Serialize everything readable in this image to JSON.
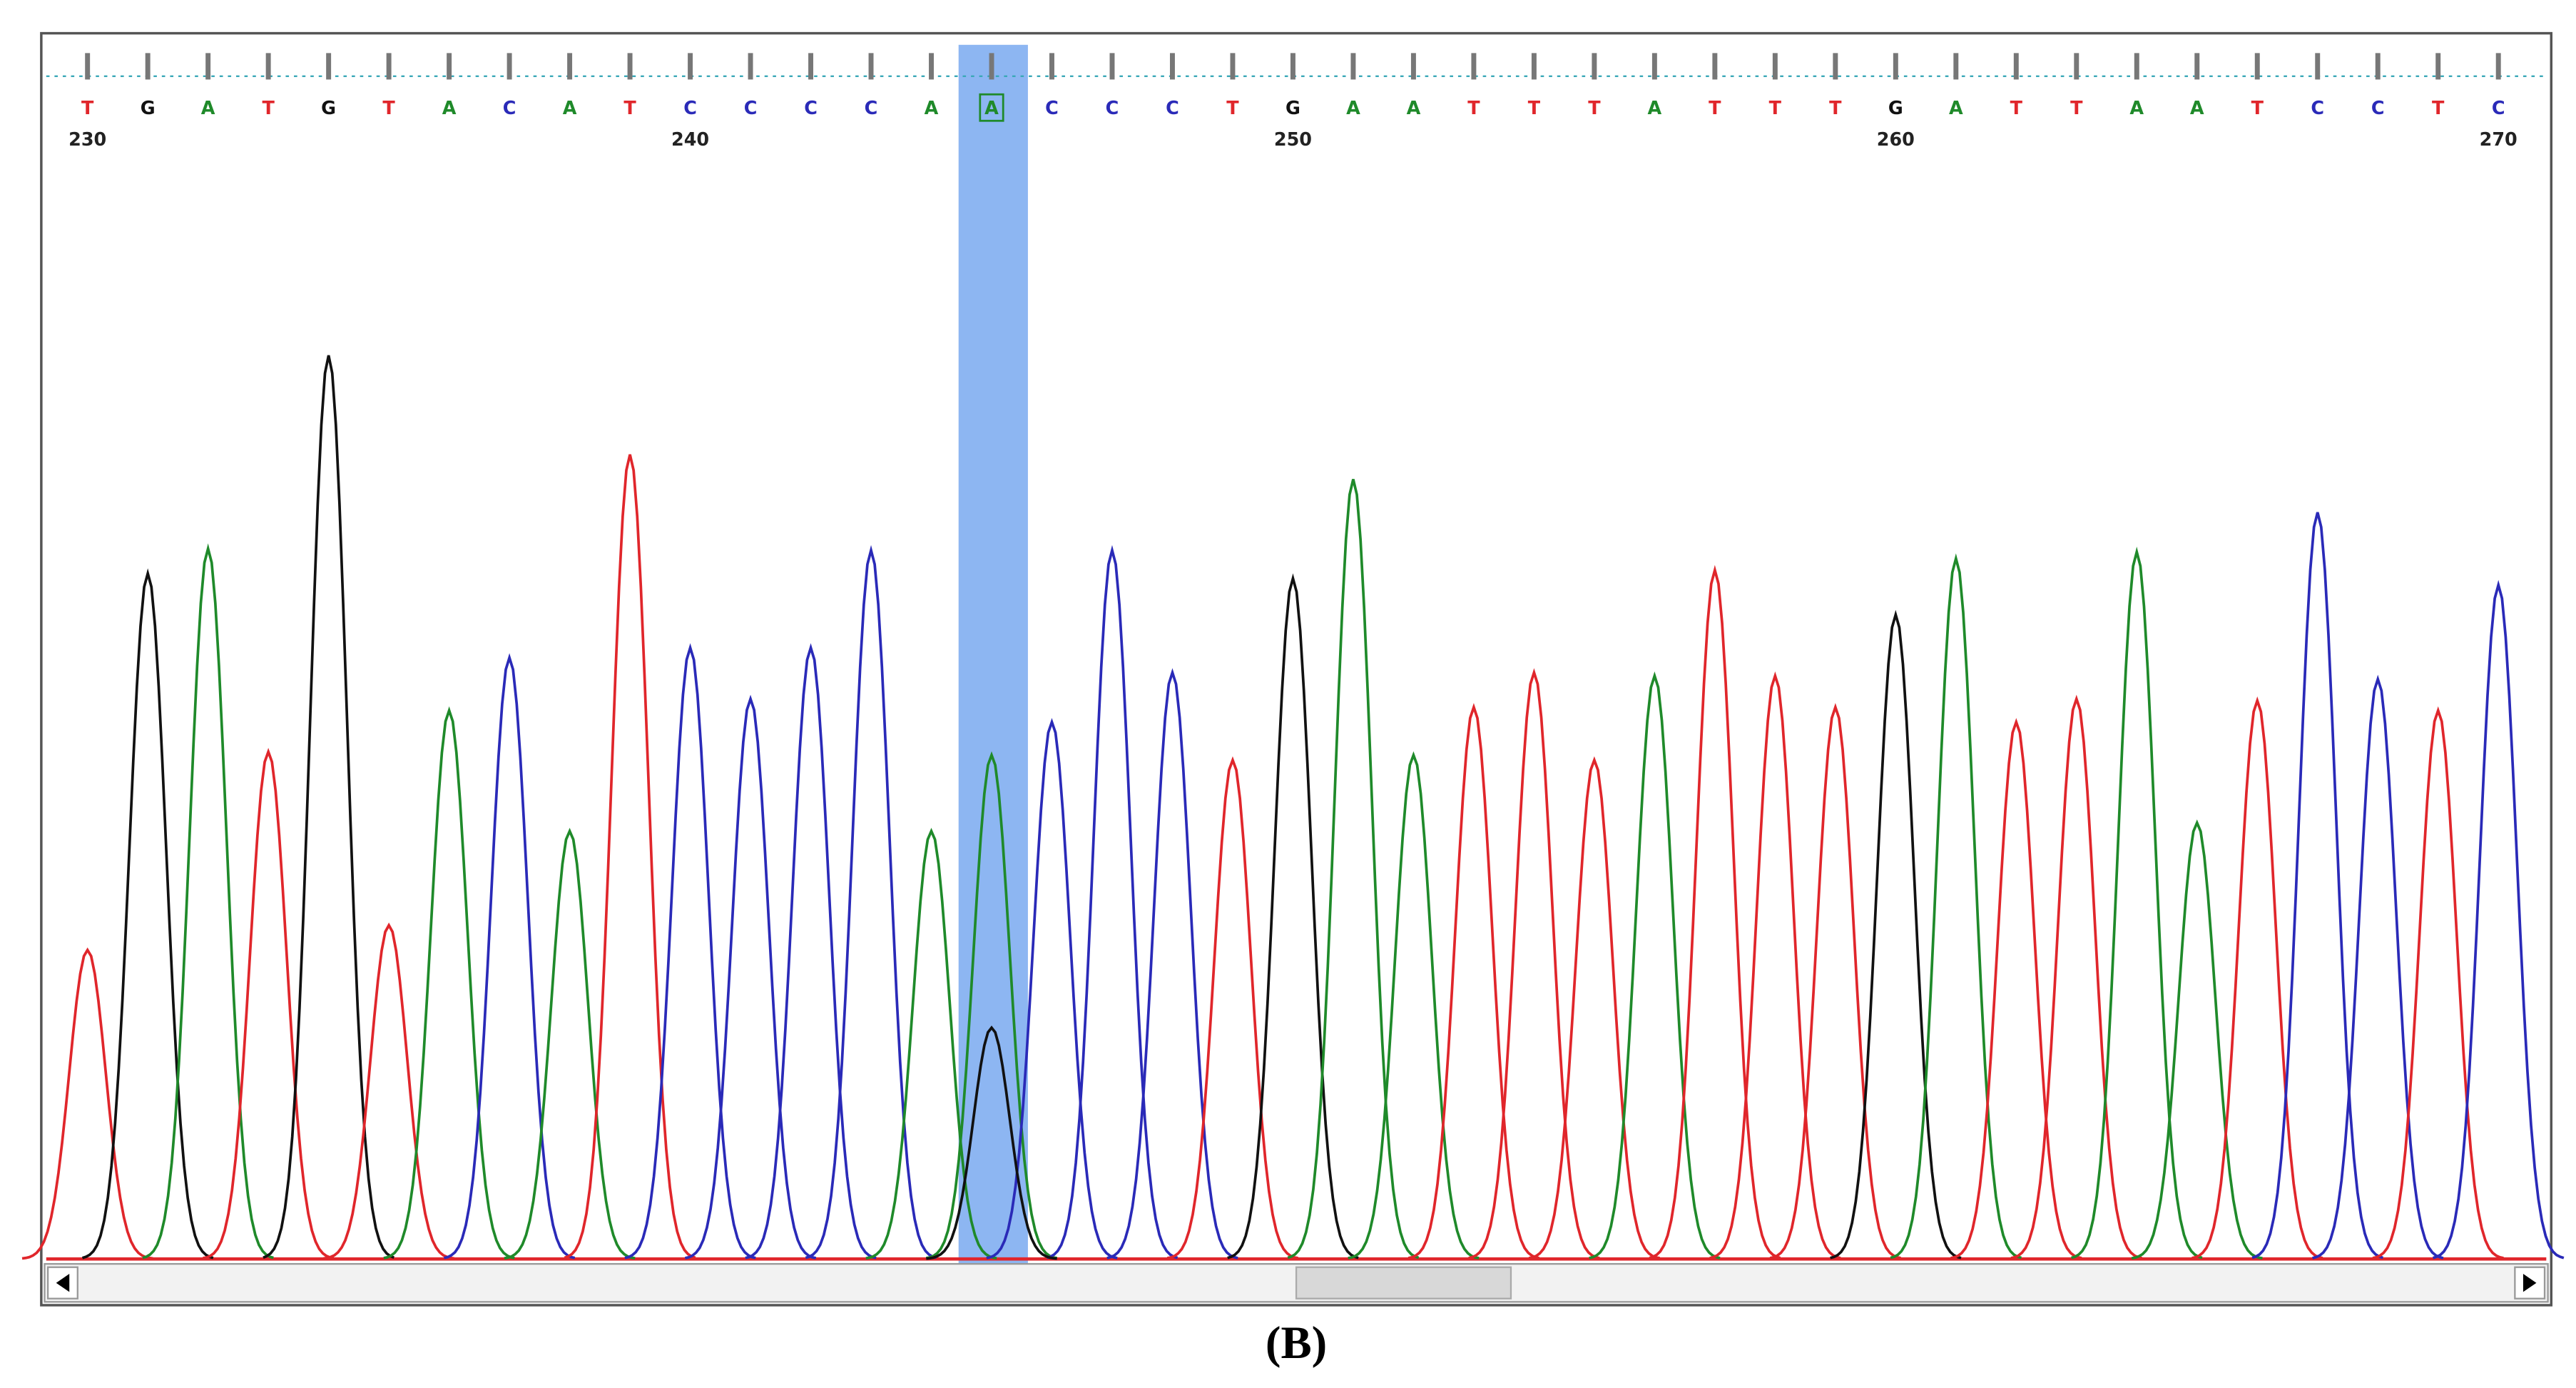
{
  "chromatogram": {
    "bases": [
      "T",
      "G",
      "A",
      "T",
      "G",
      "T",
      "A",
      "C",
      "A",
      "T",
      "C",
      "C",
      "C",
      "C",
      "A",
      "A",
      "C",
      "C",
      "C",
      "T",
      "G",
      "A",
      "A",
      "T",
      "T",
      "T",
      "A",
      "T",
      "T",
      "T",
      "G",
      "A",
      "T",
      "T",
      "A",
      "A",
      "T",
      "C",
      "C",
      "T",
      "C"
    ],
    "heights": [
      187,
      415,
      430,
      307,
      547,
      202,
      332,
      364,
      259,
      487,
      370,
      339,
      370,
      429,
      259,
      305,
      325,
      429,
      355,
      302,
      412,
      472,
      305,
      334,
      355,
      302,
      353,
      417,
      353,
      334,
      390,
      424,
      325,
      339,
      428,
      264,
      338,
      452,
      351,
      332,
      408
    ],
    "positions": [
      230,
      240,
      250,
      260,
      270
    ],
    "colors": {
      "A": "#1f8a2a",
      "C": "#2a2ab8",
      "G": "#111111",
      "T": "#e0262b"
    },
    "highlight": 15,
    "secondary_peak": {
      "base": "G",
      "height": 140
    },
    "caption": "(B)"
  }
}
